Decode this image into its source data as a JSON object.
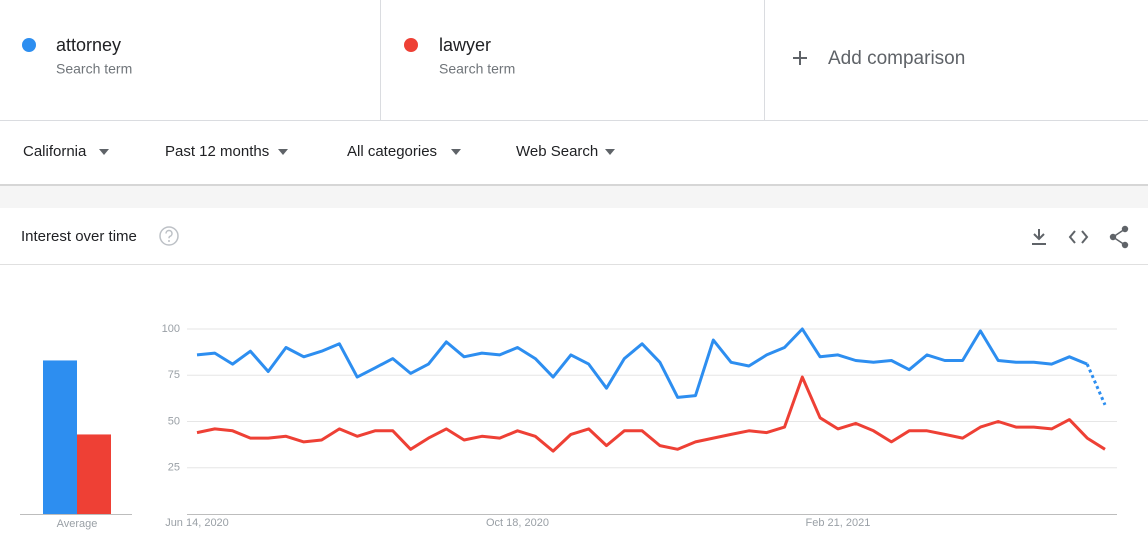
{
  "term_subtitles": [
    "Search term",
    "Search term"
  ],
  "add_comparison": "Add comparison",
  "filters": [
    "California",
    "Past 12 months",
    "All categories",
    "Web Search"
  ],
  "section_title": "Interest over time",
  "chart_data": {
    "type": "line",
    "categories": [
      "Jun 14, 2020",
      null,
      null,
      null,
      null,
      null,
      null,
      null,
      null,
      null,
      null,
      null,
      null,
      null,
      null,
      null,
      null,
      null,
      "Oct 18, 2020",
      null,
      null,
      null,
      null,
      null,
      null,
      null,
      null,
      null,
      null,
      null,
      null,
      null,
      null,
      null,
      null,
      null,
      "Feb 21, 2021",
      null,
      null,
      null,
      null,
      null,
      null,
      null,
      null,
      null,
      null,
      null,
      null,
      null,
      null,
      null
    ],
    "series": [
      {
        "name": "attorney",
        "color": "#2d8ef0",
        "values": [
          86,
          87,
          81,
          88,
          77,
          90,
          85,
          88,
          92,
          74,
          79,
          84,
          76,
          81,
          93,
          85,
          87,
          86,
          90,
          84,
          74,
          86,
          81,
          68,
          84,
          92,
          82,
          63,
          64,
          94,
          82,
          80,
          86,
          90,
          100,
          85,
          86,
          83,
          82,
          83,
          78,
          86,
          83,
          83,
          99,
          83,
          82,
          82,
          81,
          85,
          81,
          59
        ]
      },
      {
        "name": "lawyer",
        "color": "#ee4035",
        "values": [
          44,
          46,
          45,
          41,
          41,
          42,
          39,
          40,
          46,
          42,
          45,
          45,
          35,
          41,
          46,
          40,
          42,
          41,
          45,
          42,
          34,
          43,
          46,
          37,
          45,
          45,
          37,
          35,
          39,
          41,
          43,
          45,
          44,
          47,
          74,
          52,
          46,
          49,
          45,
          39,
          45,
          45,
          43,
          41,
          47,
          50,
          47,
          47,
          46,
          51,
          41,
          35
        ]
      }
    ],
    "averages": {
      "label": "Average",
      "values": [
        83,
        43
      ]
    },
    "ylim": [
      0,
      100
    ],
    "yticks": [
      25,
      50,
      75,
      100
    ],
    "grid": true
  }
}
